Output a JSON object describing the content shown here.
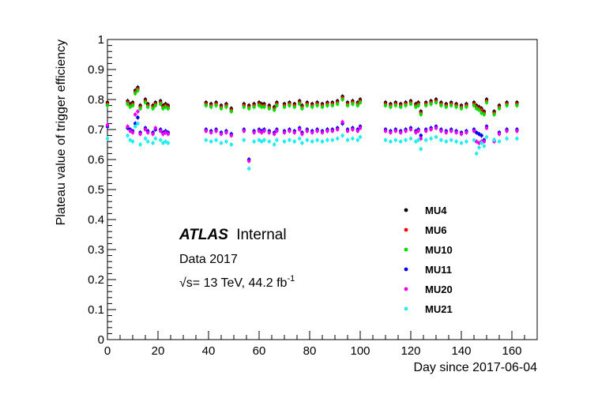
{
  "chart_data": {
    "type": "scatter",
    "title": "",
    "xlabel": "Day since 2017-06-04",
    "ylabel": "Plateau value of trigger efficiency",
    "xlim": [
      0,
      170
    ],
    "ylim": [
      0,
      1
    ],
    "xticks": [
      0,
      20,
      40,
      60,
      80,
      100,
      120,
      140,
      160
    ],
    "yticks": [
      0,
      0.1,
      0.2,
      0.3,
      0.4,
      0.5,
      0.6,
      0.7,
      0.8,
      0.9,
      1
    ],
    "ytick_labels": [
      "0",
      "0.1",
      "0.2",
      "0.3",
      "0.4",
      "0.5",
      "0.6",
      "0.7",
      "0.8",
      "0.9",
      "1"
    ],
    "grid": false,
    "legend_position": "lower-right",
    "annotations": {
      "experiment": "ATLAS",
      "status": "Internal",
      "dataset": "Data 2017",
      "energy": "√s= 13 TeV, 44.2 fb",
      "energy_superscript": "-1"
    },
    "series": [
      {
        "name": "MU4",
        "color": "#000000",
        "x": [
          0,
          8,
          9,
          10,
          11,
          12,
          13,
          15,
          16,
          18,
          19,
          21,
          22,
          23,
          24,
          39,
          41,
          43,
          45,
          47,
          49,
          54,
          56,
          58,
          60,
          61,
          62,
          64,
          66,
          67,
          70,
          72,
          74,
          76,
          77,
          79,
          81,
          83,
          85,
          87,
          89,
          91,
          93,
          95,
          97,
          99,
          100,
          110,
          112,
          114,
          116,
          118,
          120,
          122,
          123,
          124,
          126,
          128,
          130,
          132,
          134,
          136,
          138,
          140,
          142,
          145,
          146,
          147,
          148,
          149,
          150,
          153,
          155,
          158,
          162
        ],
        "y": [
          0.79,
          0.795,
          0.785,
          0.79,
          0.83,
          0.84,
          0.78,
          0.8,
          0.785,
          0.78,
          0.79,
          0.795,
          0.78,
          0.785,
          0.78,
          0.79,
          0.785,
          0.79,
          0.78,
          0.785,
          0.77,
          0.785,
          0.78,
          0.785,
          0.79,
          0.785,
          0.785,
          0.78,
          0.775,
          0.79,
          0.785,
          0.79,
          0.785,
          0.795,
          0.78,
          0.79,
          0.785,
          0.79,
          0.785,
          0.79,
          0.79,
          0.795,
          0.81,
          0.79,
          0.795,
          0.79,
          0.8,
          0.79,
          0.785,
          0.79,
          0.785,
          0.79,
          0.795,
          0.785,
          0.79,
          0.76,
          0.79,
          0.795,
          0.8,
          0.79,
          0.785,
          0.79,
          0.785,
          0.78,
          0.785,
          0.79,
          0.78,
          0.775,
          0.77,
          0.76,
          0.8,
          0.76,
          0.78,
          0.79,
          0.79
        ]
      },
      {
        "name": "MU6",
        "color": "#ff0000",
        "x": [
          0,
          8,
          9,
          10,
          11,
          12,
          13,
          15,
          16,
          18,
          19,
          21,
          22,
          23,
          24,
          39,
          41,
          43,
          45,
          47,
          49,
          54,
          56,
          58,
          60,
          61,
          62,
          64,
          66,
          67,
          70,
          72,
          74,
          76,
          77,
          79,
          81,
          83,
          85,
          87,
          89,
          91,
          93,
          95,
          97,
          99,
          100,
          110,
          112,
          114,
          116,
          118,
          120,
          122,
          123,
          124,
          126,
          128,
          130,
          132,
          134,
          136,
          138,
          140,
          142,
          145,
          146,
          147,
          148,
          149,
          150,
          153,
          155,
          158,
          162
        ],
        "y": [
          0.785,
          0.79,
          0.78,
          0.785,
          0.825,
          0.835,
          0.775,
          0.795,
          0.78,
          0.775,
          0.785,
          0.79,
          0.775,
          0.78,
          0.775,
          0.785,
          0.78,
          0.785,
          0.775,
          0.78,
          0.765,
          0.78,
          0.775,
          0.78,
          0.785,
          0.78,
          0.78,
          0.775,
          0.77,
          0.785,
          0.78,
          0.785,
          0.78,
          0.79,
          0.775,
          0.785,
          0.78,
          0.785,
          0.78,
          0.785,
          0.785,
          0.79,
          0.805,
          0.785,
          0.79,
          0.785,
          0.795,
          0.785,
          0.78,
          0.785,
          0.78,
          0.785,
          0.79,
          0.78,
          0.785,
          0.755,
          0.785,
          0.79,
          0.795,
          0.785,
          0.78,
          0.785,
          0.78,
          0.775,
          0.78,
          0.785,
          0.775,
          0.77,
          0.765,
          0.755,
          0.795,
          0.755,
          0.775,
          0.785,
          0.785
        ]
      },
      {
        "name": "MU10",
        "color": "#00dd00",
        "x": [
          0,
          8,
          9,
          10,
          11,
          12,
          13,
          15,
          16,
          18,
          19,
          21,
          22,
          23,
          24,
          39,
          41,
          43,
          45,
          47,
          49,
          54,
          56,
          58,
          60,
          61,
          62,
          64,
          66,
          67,
          70,
          72,
          74,
          76,
          77,
          79,
          81,
          83,
          85,
          87,
          89,
          91,
          93,
          95,
          97,
          99,
          100,
          110,
          112,
          114,
          116,
          118,
          120,
          122,
          123,
          124,
          126,
          128,
          130,
          132,
          134,
          136,
          138,
          140,
          142,
          145,
          146,
          147,
          148,
          149,
          150,
          153,
          155,
          158,
          162
        ],
        "y": [
          0.78,
          0.785,
          0.775,
          0.78,
          0.82,
          0.83,
          0.77,
          0.79,
          0.775,
          0.77,
          0.78,
          0.785,
          0.77,
          0.775,
          0.77,
          0.78,
          0.775,
          0.78,
          0.77,
          0.775,
          0.76,
          0.775,
          0.77,
          0.775,
          0.78,
          0.775,
          0.775,
          0.77,
          0.765,
          0.78,
          0.775,
          0.78,
          0.775,
          0.785,
          0.77,
          0.78,
          0.775,
          0.78,
          0.775,
          0.78,
          0.78,
          0.785,
          0.8,
          0.78,
          0.785,
          0.78,
          0.79,
          0.78,
          0.775,
          0.78,
          0.775,
          0.78,
          0.785,
          0.775,
          0.78,
          0.75,
          0.78,
          0.785,
          0.79,
          0.78,
          0.775,
          0.78,
          0.775,
          0.77,
          0.775,
          0.78,
          0.77,
          0.765,
          0.755,
          0.75,
          0.79,
          0.75,
          0.77,
          0.78,
          0.78
        ]
      },
      {
        "name": "MU11",
        "color": "#0000ee",
        "x": [
          0,
          8,
          9,
          10,
          11,
          12,
          13,
          15,
          16,
          18,
          19,
          21,
          22,
          23,
          24,
          39,
          41,
          43,
          45,
          47,
          49,
          54,
          56,
          58,
          60,
          61,
          62,
          64,
          66,
          67,
          70,
          72,
          74,
          76,
          77,
          79,
          81,
          83,
          85,
          87,
          89,
          91,
          93,
          95,
          97,
          99,
          100,
          110,
          112,
          114,
          116,
          118,
          120,
          122,
          123,
          124,
          126,
          128,
          130,
          132,
          134,
          136,
          138,
          140,
          142,
          145,
          146,
          147,
          148,
          149,
          150,
          153,
          155,
          158,
          162
        ],
        "y": [
          0.71,
          0.705,
          0.7,
          0.695,
          0.72,
          0.74,
          0.69,
          0.705,
          0.695,
          0.69,
          0.7,
          0.7,
          0.69,
          0.695,
          0.69,
          0.7,
          0.695,
          0.7,
          0.69,
          0.695,
          0.685,
          0.7,
          0.6,
          0.695,
          0.7,
          0.695,
          0.7,
          0.695,
          0.69,
          0.7,
          0.695,
          0.7,
          0.695,
          0.705,
          0.69,
          0.7,
          0.695,
          0.7,
          0.695,
          0.7,
          0.7,
          0.705,
          0.72,
          0.7,
          0.705,
          0.7,
          0.71,
          0.7,
          0.695,
          0.7,
          0.695,
          0.7,
          0.705,
          0.695,
          0.7,
          0.68,
          0.7,
          0.705,
          0.71,
          0.7,
          0.695,
          0.7,
          0.695,
          0.69,
          0.695,
          0.7,
          0.69,
          0.685,
          0.68,
          0.665,
          0.71,
          0.665,
          0.69,
          0.7,
          0.7
        ]
      },
      {
        "name": "MU20",
        "color": "#ee00ee",
        "x": [
          0,
          8,
          9,
          10,
          11,
          12,
          13,
          15,
          16,
          18,
          19,
          21,
          22,
          23,
          24,
          39,
          41,
          43,
          45,
          47,
          49,
          54,
          56,
          58,
          60,
          61,
          62,
          64,
          66,
          67,
          70,
          72,
          74,
          76,
          77,
          79,
          81,
          83,
          85,
          87,
          89,
          91,
          93,
          95,
          97,
          99,
          100,
          110,
          112,
          114,
          116,
          118,
          120,
          122,
          123,
          124,
          126,
          128,
          130,
          132,
          134,
          136,
          138,
          140,
          142,
          145,
          146,
          147,
          148,
          149,
          150,
          153,
          155,
          158,
          162
        ],
        "y": [
          0.715,
          0.71,
          0.695,
          0.69,
          0.75,
          0.76,
          0.685,
          0.7,
          0.69,
          0.685,
          0.705,
          0.695,
          0.685,
          0.69,
          0.685,
          0.695,
          0.69,
          0.695,
          0.685,
          0.69,
          0.68,
          0.695,
          0.595,
          0.69,
          0.695,
          0.69,
          0.695,
          0.69,
          0.685,
          0.695,
          0.69,
          0.695,
          0.69,
          0.7,
          0.685,
          0.695,
          0.69,
          0.695,
          0.69,
          0.695,
          0.695,
          0.7,
          0.725,
          0.695,
          0.7,
          0.695,
          0.705,
          0.695,
          0.69,
          0.695,
          0.69,
          0.695,
          0.7,
          0.69,
          0.695,
          0.67,
          0.695,
          0.7,
          0.705,
          0.695,
          0.69,
          0.695,
          0.69,
          0.685,
          0.69,
          0.695,
          0.66,
          0.655,
          0.66,
          0.66,
          0.705,
          0.66,
          0.685,
          0.695,
          0.695
        ]
      },
      {
        "name": "MU21",
        "color": "#22eeee",
        "x": [
          0,
          8,
          9,
          10,
          11,
          12,
          13,
          15,
          16,
          18,
          19,
          21,
          22,
          23,
          24,
          39,
          41,
          43,
          45,
          47,
          49,
          54,
          56,
          58,
          60,
          61,
          62,
          64,
          66,
          67,
          70,
          72,
          74,
          76,
          77,
          79,
          81,
          83,
          85,
          87,
          89,
          91,
          93,
          95,
          97,
          99,
          100,
          110,
          112,
          114,
          116,
          118,
          120,
          122,
          123,
          124,
          126,
          128,
          130,
          132,
          134,
          136,
          138,
          140,
          142,
          145,
          146,
          147,
          148,
          149,
          150,
          153,
          155,
          158,
          162
        ],
        "y": [
          0.67,
          0.68,
          0.665,
          0.66,
          0.71,
          0.72,
          0.65,
          0.67,
          0.66,
          0.655,
          0.67,
          0.665,
          0.655,
          0.66,
          0.655,
          0.665,
          0.66,
          0.665,
          0.655,
          0.66,
          0.65,
          0.665,
          0.57,
          0.66,
          0.665,
          0.66,
          0.665,
          0.66,
          0.65,
          0.665,
          0.66,
          0.665,
          0.66,
          0.67,
          0.655,
          0.665,
          0.66,
          0.665,
          0.66,
          0.665,
          0.665,
          0.67,
          0.68,
          0.665,
          0.67,
          0.665,
          0.675,
          0.665,
          0.66,
          0.665,
          0.66,
          0.665,
          0.67,
          0.66,
          0.665,
          0.635,
          0.665,
          0.67,
          0.675,
          0.665,
          0.66,
          0.665,
          0.66,
          0.655,
          0.66,
          0.665,
          0.62,
          0.64,
          0.655,
          0.645,
          0.675,
          0.665,
          0.66,
          0.67,
          0.67
        ]
      }
    ]
  }
}
